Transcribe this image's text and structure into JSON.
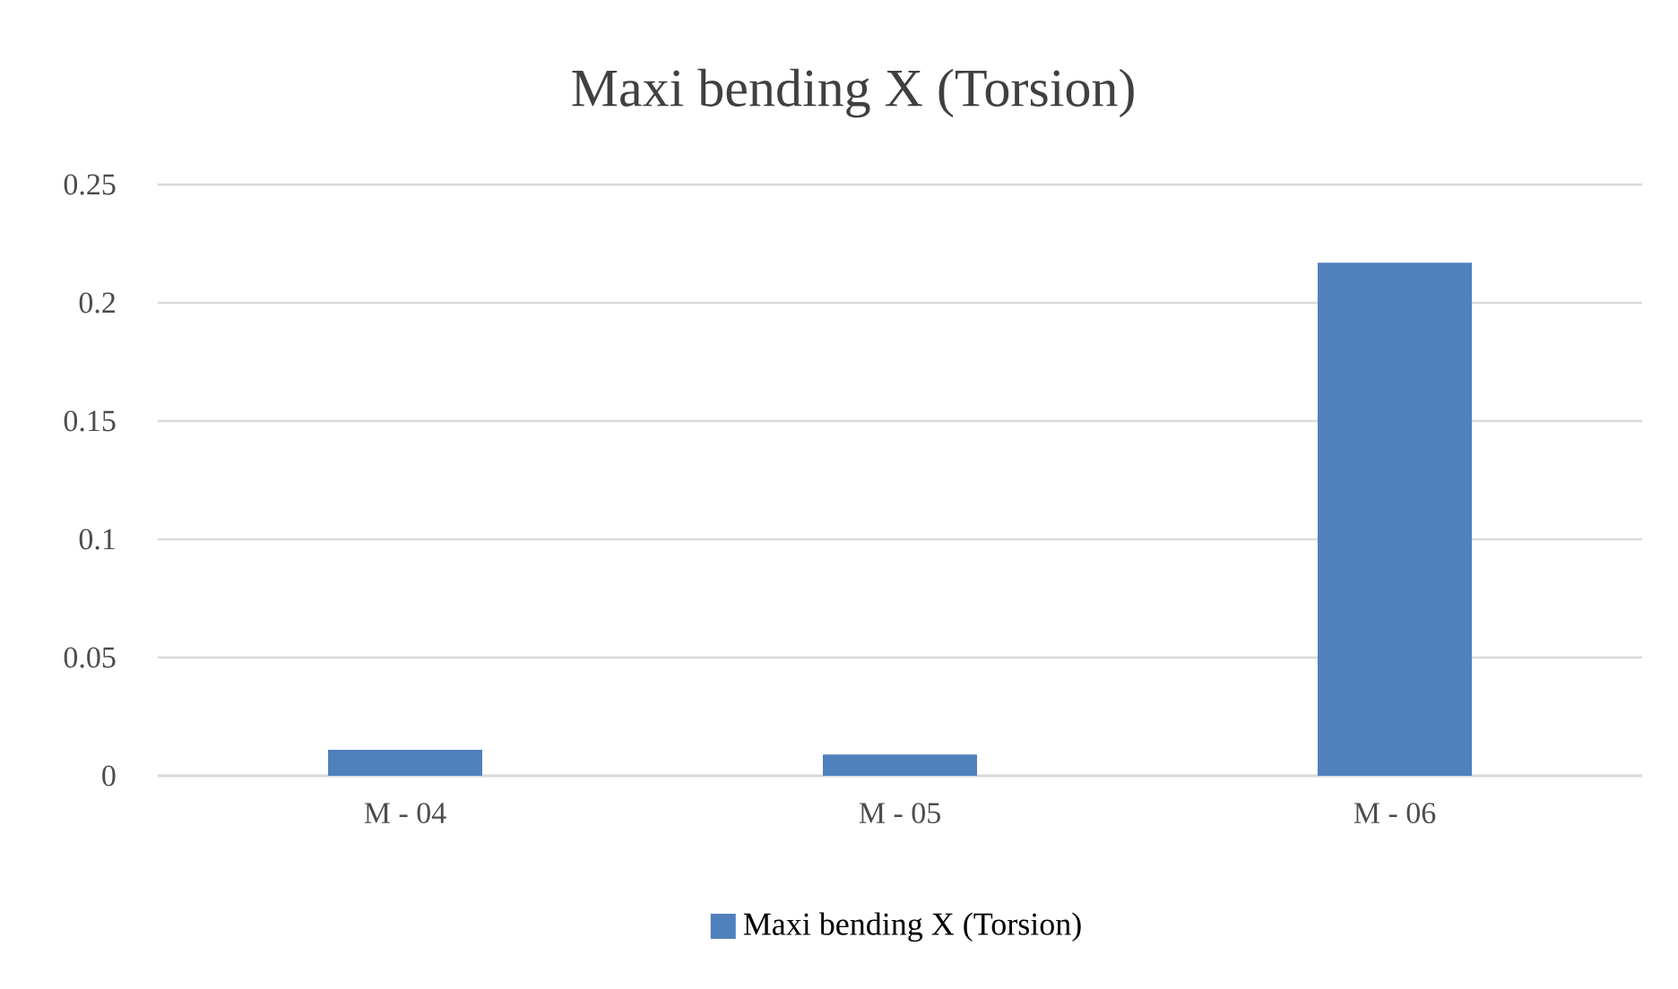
{
  "chart_data": {
    "type": "bar",
    "title": "Maxi bending X (Torsion)",
    "categories": [
      "M - 04",
      "M - 05",
      "M - 06"
    ],
    "series": [
      {
        "name": "Maxi bending X (Torsion)",
        "color": "#4f81bd",
        "values": [
          0.011,
          0.009,
          0.217
        ]
      }
    ],
    "ylim": [
      0,
      0.25
    ],
    "yticks": [
      0,
      0.05,
      0.1,
      0.15,
      0.2,
      0.25
    ],
    "grid": "y",
    "legend": "bottom"
  }
}
